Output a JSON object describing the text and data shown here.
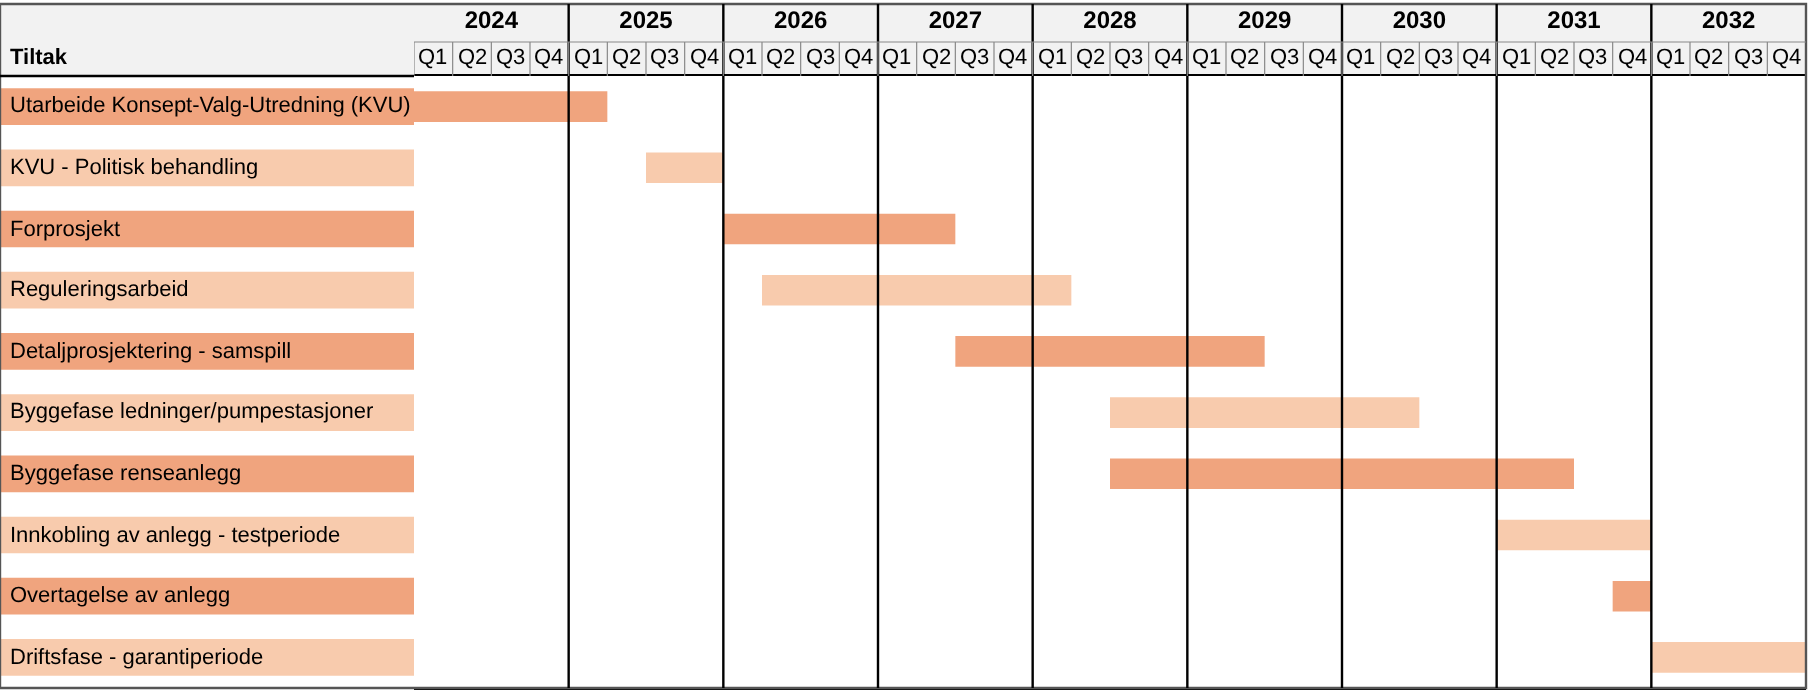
{
  "chart_data": {
    "type": "bar",
    "orientation": "horizontal",
    "ylabel": "Tiltak",
    "categories": [
      "Utarbeide Konsept-Valg-Utredning (KVU)",
      "KVU - Politisk behandling",
      "Forprosjekt",
      "Reguleringsarbeid",
      "Detaljprosjektering - samspill",
      "Byggefase ledninger/pumpestasjoner",
      "Byggefase renseanlegg",
      "Innkobling av anlegg - testperiode",
      "Overtagelse av anlegg",
      "Driftsfase - garantiperiode"
    ],
    "base": [
      2023.5,
      2025,
      2025.5,
      2025.75,
      2027,
      2028,
      2028,
      2030.5,
      2031.25,
      2031.5
    ],
    "values": [
      1.25,
      0.5,
      1.5,
      2,
      2,
      2,
      3,
      1,
      0.25,
      1
    ],
    "colors": [
      "#f0a47e",
      "#f8cbad",
      "#f0a47e",
      "#f8cbad",
      "#f0a47e",
      "#f8cbad",
      "#f0a47e",
      "#f8cbad",
      "#f0a47e",
      "#f8cbad"
    ],
    "xlim": [
      2023.5,
      2032.5
    ],
    "xticks": [
      2024,
      2025,
      2026,
      2027,
      2028,
      2029,
      2030,
      2031,
      2032
    ],
    "annotations": [
      "Q1",
      "Q2",
      "Q3",
      "Q4",
      "Q1",
      "Q2",
      "Q3",
      "Q4",
      "Q1",
      "Q2",
      "Q3",
      "Q4",
      "Q1",
      "Q2",
      "Q3",
      "Q4",
      "Q1",
      "Q2",
      "Q3",
      "Q4",
      "Q1",
      "Q2",
      "Q3",
      "Q4",
      "Q1",
      "Q2",
      "Q3",
      "Q4",
      "Q1",
      "Q2",
      "Q3",
      "Q4",
      "Q1",
      "Q2",
      "Q3",
      "Q4"
    ],
    "ref_lines": [
      {
        "axis": "x",
        "value": 2024.5,
        "color": "#000000"
      },
      {
        "axis": "x",
        "value": 2025.5,
        "color": "#000000"
      },
      {
        "axis": "x",
        "value": 2026.5,
        "color": "#000000"
      },
      {
        "axis": "x",
        "value": 2027.5,
        "color": "#000000"
      },
      {
        "axis": "x",
        "value": 2028.5,
        "color": "#000000"
      },
      {
        "axis": "x",
        "value": 2029.5,
        "color": "#000000"
      },
      {
        "axis": "x",
        "value": 2030.5,
        "color": "#000000"
      },
      {
        "axis": "x",
        "value": 2031.5,
        "color": "#000000"
      }
    ]
  }
}
